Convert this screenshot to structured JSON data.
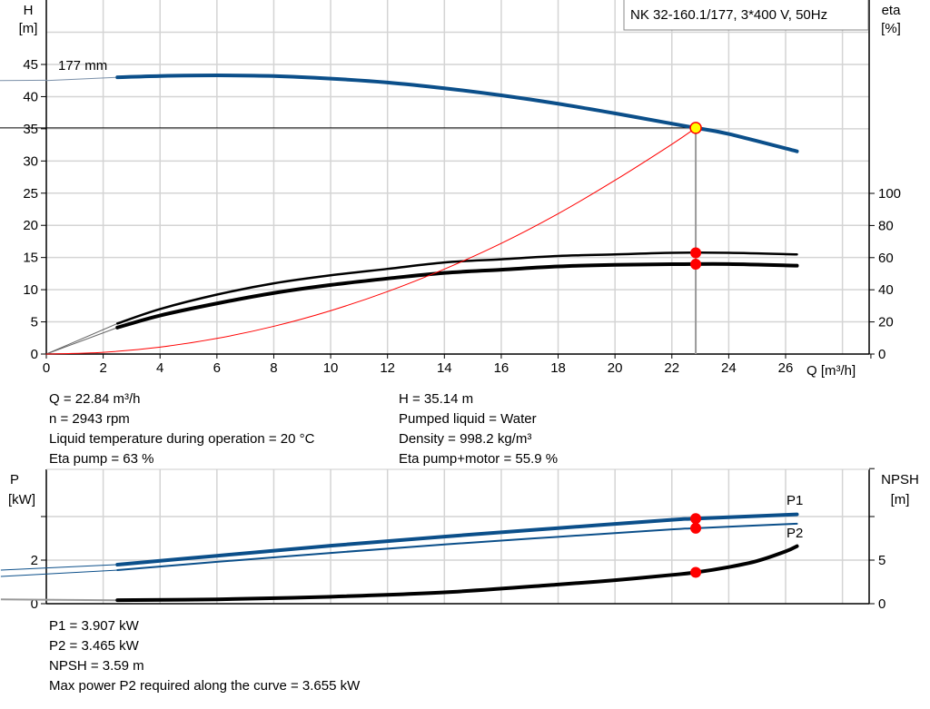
{
  "chart_data": [
    {
      "type": "line",
      "title": "NK 32-160.1/177, 3*400 V, 50Hz",
      "xlabel": "Q [m³/h]",
      "ylabel": [
        "H",
        "[m]"
      ],
      "ylabel_right": [
        "eta",
        "[%]"
      ],
      "xlim": [
        0,
        29
      ],
      "ylim": [
        0,
        50
      ],
      "ylim_right": [
        0,
        220
      ],
      "xticks": [
        "0",
        "2",
        "4",
        "6",
        "8",
        "10",
        "12",
        "14",
        "16",
        "18",
        "20",
        "22",
        "24",
        "26"
      ],
      "yticks": [
        "0",
        "5",
        "10",
        "15",
        "20",
        "25",
        "30",
        "35",
        "40",
        "45"
      ],
      "yticks_right": [
        "0",
        "20",
        "40",
        "60",
        "80",
        "100"
      ],
      "grid": true,
      "curve_label": "177 mm",
      "series": [
        {
          "key": "H",
          "axis": "left",
          "color": "#0b4f8a",
          "x": [
            2.5,
            4,
            6,
            8,
            10,
            12,
            14,
            16,
            18,
            20,
            22,
            22.84,
            24,
            26.4
          ],
          "y": [
            43.0,
            43.2,
            43.3,
            43.2,
            42.8,
            42.2,
            41.3,
            40.2,
            38.9,
            37.4,
            35.8,
            35.14,
            34.2,
            31.5
          ],
          "extension": {
            "x": [
              0,
              2.5
            ],
            "y": [
              42.5,
              43.0
            ]
          }
        },
        {
          "key": "eta_pump",
          "axis": "right",
          "color": "#000000",
          "x": [
            2.5,
            4,
            6,
            8,
            10,
            12,
            14,
            16,
            18,
            20,
            22,
            24,
            26.4
          ],
          "y": [
            19,
            28,
            37,
            44,
            49,
            53,
            57,
            59,
            61,
            62,
            63,
            63,
            62
          ],
          "extension": {
            "x": [
              0,
              2.5
            ],
            "y": [
              0,
              19
            ]
          }
        },
        {
          "key": "eta_pump_motor",
          "axis": "right",
          "color": "#000000",
          "x": [
            2.5,
            4,
            6,
            8,
            10,
            12,
            14,
            16,
            18,
            20,
            22,
            24,
            26.4
          ],
          "y": [
            16.5,
            24,
            31.5,
            38,
            43,
            47,
            50.5,
            52.5,
            54.5,
            55.5,
            55.9,
            56,
            55
          ],
          "extension": {
            "x": [
              0,
              2.5
            ],
            "y": [
              0,
              16.5
            ]
          }
        },
        {
          "key": "system_curve",
          "axis": "left",
          "color": "#ff0000",
          "x": [
            0,
            2,
            4,
            6,
            8,
            10,
            12,
            14,
            16,
            18,
            20,
            22,
            22.84
          ],
          "y": [
            0,
            0.27,
            1.08,
            2.43,
            4.31,
            6.74,
            9.71,
            13.2,
            17.2,
            21.8,
            27.0,
            32.6,
            35.14
          ]
        }
      ],
      "duty_point": {
        "Q": 22.84,
        "H": 35.14,
        "eta_pump": 63,
        "eta_pump_motor": 55.9
      },
      "colors": {
        "head": "#0b4f8a",
        "duty_marker": "#ffff00",
        "marker": "#ff0000",
        "system": "#ff0000"
      }
    },
    {
      "type": "line",
      "ylabel": [
        "P",
        "[kW]"
      ],
      "ylabel_right": [
        "NPSH",
        "[m]"
      ],
      "xlim": [
        0,
        29
      ],
      "ylim": [
        0,
        6.2
      ],
      "ylim_right": [
        0,
        15.5
      ],
      "yticks": [
        "0",
        "2"
      ],
      "yticks_right": [
        "0",
        "5"
      ],
      "grid": true,
      "series": [
        {
          "key": "P1",
          "name": "P1",
          "axis": "left",
          "color": "#0b4f8a",
          "x": [
            2.5,
            6,
            10,
            14,
            18,
            22,
            22.84,
            26.4
          ],
          "y": [
            1.79,
            2.2,
            2.66,
            3.08,
            3.47,
            3.85,
            3.907,
            4.1
          ],
          "extension": {
            "x": [
              -1.6,
              2.5
            ],
            "y": [
              1.54,
              1.79
            ]
          }
        },
        {
          "key": "P2",
          "name": "P2",
          "axis": "left",
          "color": "#0b4f8a",
          "x": [
            2.5,
            6,
            10,
            14,
            18,
            22,
            22.84,
            26.4
          ],
          "y": [
            1.54,
            1.92,
            2.33,
            2.72,
            3.07,
            3.41,
            3.465,
            3.67
          ],
          "extension": {
            "x": [
              -1.6,
              2.5
            ],
            "y": [
              1.25,
              1.54
            ]
          }
        },
        {
          "key": "NPSH",
          "axis": "right",
          "color": "#000000",
          "x": [
            2.5,
            6,
            10,
            14,
            18,
            20,
            22,
            22.84,
            24,
            25,
            26,
            26.4
          ],
          "y": [
            0.4,
            0.5,
            0.8,
            1.3,
            2.2,
            2.7,
            3.3,
            3.59,
            4.2,
            4.9,
            6.0,
            6.6
          ],
          "extension": {
            "x": [
              -1.6,
              2.5
            ],
            "y": [
              0.5,
              0.4
            ]
          }
        }
      ],
      "duty_point": {
        "Q": 22.84,
        "P1": 3.907,
        "P2": 3.465,
        "NPSH": 3.59
      }
    }
  ],
  "info_top": {
    "left": [
      "Q = 22.84 m³/h",
      "n = 2943 rpm",
      "Liquid temperature during operation = 20 °C",
      "Eta pump = 63 %"
    ],
    "right": [
      "H = 35.14 m",
      "Pumped liquid = Water",
      "Density = 998.2 kg/m³",
      "Eta pump+motor = 55.9 %"
    ]
  },
  "info_bottom": [
    "P1 = 3.907 kW",
    "P2 = 3.465 kW",
    "NPSH = 3.59 m",
    "Max power P2 required along the curve = 3.655 kW"
  ]
}
